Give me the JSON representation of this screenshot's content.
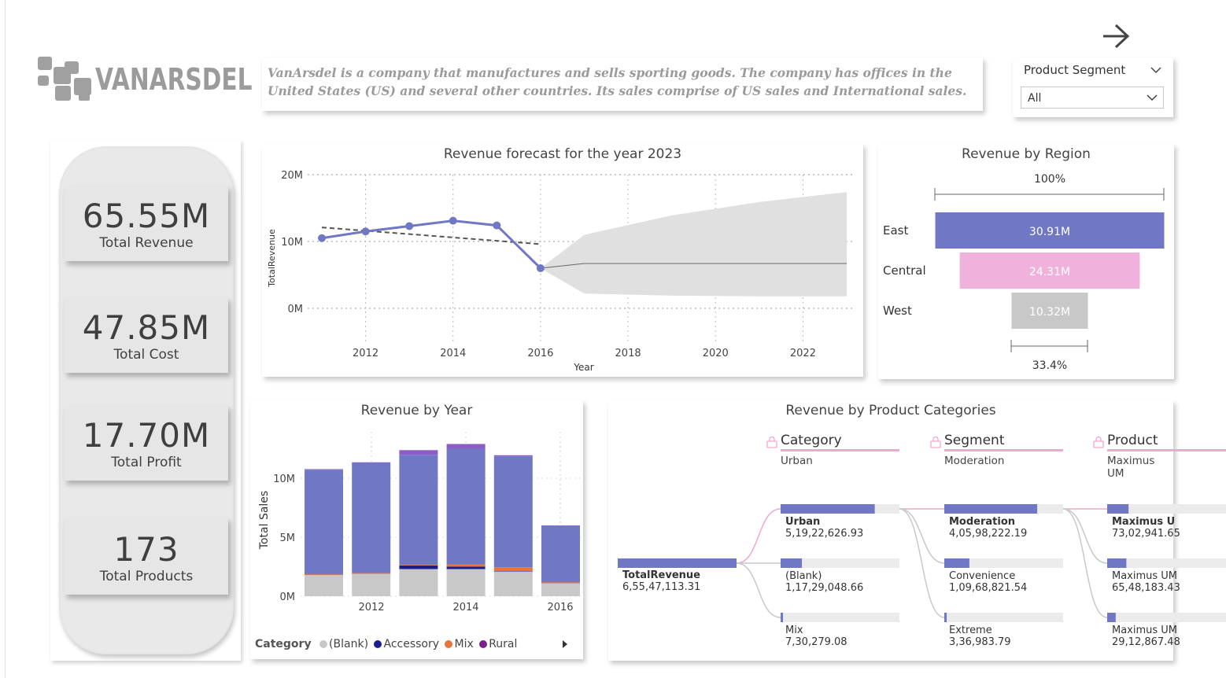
{
  "logo": {
    "text": "VANARSDEL"
  },
  "description": "VanArsdel is a company that manufactures and sells sporting goods. The company has offices in the United States (US) and several other countries. Its sales comprise of US sales and International sales.",
  "nav": {
    "icon": "arrow-right-icon"
  },
  "slicer": {
    "title": "Product Segment",
    "value": "All"
  },
  "kpis": [
    {
      "value": "65.55M",
      "label": "Total Revenue"
    },
    {
      "value": "47.85M",
      "label": "Total Cost"
    },
    {
      "value": "17.70M",
      "label": "Total Profit"
    },
    {
      "value": "173",
      "label": "Total Products"
    }
  ],
  "forecast": {
    "title": "Revenue forecast for the year 2023",
    "xlabel": "Year",
    "ylabel": "TotalRevenue",
    "yticks": [
      "20M",
      "10M",
      "0M"
    ],
    "xticks": [
      "2012",
      "2014",
      "2016",
      "2018",
      "2020",
      "2022"
    ]
  },
  "region": {
    "title": "Revenue by Region",
    "top_pct": "100%",
    "bottom_pct": "33.4%",
    "bars": [
      {
        "name": "East",
        "label": "30.91M",
        "color": "#7078c6"
      },
      {
        "name": "Central",
        "label": "24.31M",
        "color": "#f0b2dc"
      },
      {
        "name": "West",
        "label": "10.32M",
        "color": "#c8c8c8"
      }
    ]
  },
  "rev_year": {
    "title": "Revenue by Year",
    "ylabel": "Total Sales",
    "yticks": [
      "10M",
      "5M",
      "0M"
    ],
    "xticks": [
      "2012",
      "2014",
      "2016"
    ],
    "legend_title": "Category",
    "legend": [
      {
        "name": "(Blank)",
        "color": "#c8c8c8"
      },
      {
        "name": "Accessory",
        "color": "#1a1f8f"
      },
      {
        "name": "Mix",
        "color": "#e8743b"
      },
      {
        "name": "Rural",
        "color": "#7b1f8f"
      }
    ]
  },
  "decomp": {
    "title": "Revenue by Product Categories",
    "levels": [
      {
        "header": "Category",
        "selected": "Urban"
      },
      {
        "header": "Segment",
        "selected": "Moderation"
      },
      {
        "header": "Product",
        "selected": "Maximus UM"
      }
    ],
    "root": {
      "name": "TotalRevenue",
      "value": "6,55,47,113.31"
    },
    "col1": [
      {
        "name": "Urban",
        "value": "5,19,22,626.93"
      },
      {
        "name": "(Blank)",
        "value": "1,17,29,048.66"
      },
      {
        "name": "Mix",
        "value": "7,30,279.08"
      }
    ],
    "col2": [
      {
        "name": "Moderation",
        "value": "4,05,98,222.19"
      },
      {
        "name": "Convenience",
        "value": "1,09,68,821.54"
      },
      {
        "name": "Extreme",
        "value": "3,36,983.79"
      }
    ],
    "col3": [
      {
        "name": "Maximus U",
        "value": "73,02,941.65"
      },
      {
        "name": "Maximus UM",
        "value": "65,48,183.43"
      },
      {
        "name": "Maximus UM",
        "value": "29,12,867.48"
      }
    ]
  },
  "chart_data": [
    {
      "type": "line",
      "title": "Revenue forecast for the year 2023",
      "xlabel": "Year",
      "ylabel": "TotalRevenue",
      "ylim": [
        0,
        20000000
      ],
      "xlim": [
        2011,
        2023
      ],
      "series": [
        {
          "values": [
            [
              2011,
              10.5
            ],
            [
              2012,
              11.5
            ],
            [
              2013,
              12.3
            ],
            [
              2014,
              13.1
            ],
            [
              2015,
              12.4
            ],
            [
              2016,
              6.0
            ]
          ]
        }
      ],
      "forecast_mean": 6.7,
      "forecast_band_2023": [
        1.8,
        17.4
      ],
      "trend_line": [
        [
          2011,
          12.1
        ],
        [
          2016,
          9.6
        ]
      ],
      "grid": true
    },
    {
      "type": "bar",
      "title": "Revenue by Region",
      "categories": [
        "East",
        "Central",
        "West"
      ],
      "values": [
        30.91,
        24.31,
        10.32
      ],
      "unit": "M"
    },
    {
      "type": "bar",
      "title": "Revenue by Year",
      "stacked": true,
      "ylabel": "Total Sales",
      "ylim": [
        0,
        13000000
      ],
      "categories": [
        "2011",
        "2012",
        "2013",
        "2014",
        "2015",
        "2016"
      ],
      "series": [
        {
          "name": "(Blank)",
          "values": [
            1.8,
            1.9,
            2.3,
            2.3,
            2.1,
            1.1
          ]
        },
        {
          "name": "Accessory",
          "values": [
            0.02,
            0.02,
            0.3,
            0.2,
            0.05,
            0.02
          ]
        },
        {
          "name": "Mix",
          "values": [
            0.05,
            0.05,
            0.05,
            0.2,
            0.3,
            0.05
          ]
        },
        {
          "name": "",
          "values": [
            8.85,
            9.33,
            9.33,
            9.8,
            9.4,
            4.8
          ]
        },
        {
          "name": "Rural",
          "values": [
            0.05,
            0.05,
            0.4,
            0.4,
            0.1,
            0.03
          ]
        }
      ]
    },
    {
      "type": "bar",
      "title": "Revenue by Product Categories",
      "categories": [
        "TotalRevenue",
        "Urban",
        "(Blank)",
        "Mix",
        "Moderation",
        "Convenience",
        "Extreme",
        "Maximus U",
        "Maximus UM",
        "Maximus UM"
      ],
      "values": [
        65547113.31,
        51922626.93,
        11729048.66,
        730279.08,
        40598222.19,
        10968821.54,
        336983.79,
        7302941.65,
        6548183.43,
        2912867.48
      ]
    }
  ]
}
